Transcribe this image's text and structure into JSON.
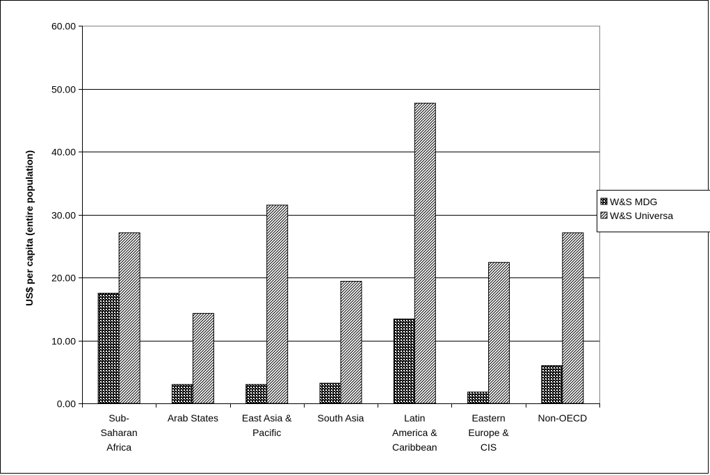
{
  "chart_data": {
    "type": "bar",
    "title": "",
    "xlabel": "",
    "ylabel": "US$ per capita (entire population)",
    "ylim": [
      0,
      60
    ],
    "yticks": [
      "0.00",
      "10.00",
      "20.00",
      "30.00",
      "40.00",
      "50.00",
      "60.00"
    ],
    "grid": true,
    "legend_position": "right",
    "categories": [
      [
        "Sub-",
        "Saharan",
        "Africa"
      ],
      [
        "Arab States"
      ],
      [
        "East Asia &",
        "Pacific"
      ],
      [
        "South Asia"
      ],
      [
        "Latin",
        "America &",
        "Caribbean"
      ],
      [
        "Eastern",
        "Europe &",
        "CIS"
      ],
      [
        "Non-OECD"
      ]
    ],
    "series": [
      {
        "name": "W&S MDG",
        "pattern": "checker",
        "values": [
          17.5,
          3.0,
          3.0,
          3.2,
          13.4,
          1.8,
          6.0
        ]
      },
      {
        "name": "W&S Universa",
        "pattern": "diagonal",
        "values": [
          27.1,
          14.3,
          31.5,
          19.4,
          47.7,
          22.4,
          27.1
        ]
      }
    ]
  }
}
